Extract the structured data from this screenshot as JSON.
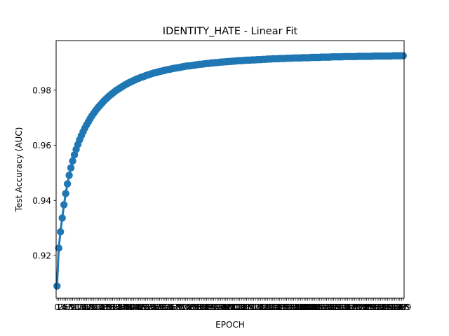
{
  "chart_data": {
    "type": "line",
    "title": "IDENTITY_HATE - Linear Fit",
    "xlabel": "EPOCH",
    "ylabel": "Test Accuracy (AUC)",
    "xlim": [
      -0.5,
      199.5
    ],
    "ylim": [
      0.9045,
      0.998
    ],
    "y_ticks": [
      0.92,
      0.94,
      0.96,
      0.98
    ],
    "y_tick_labels": [
      "0.92",
      "0.94",
      "0.96",
      "0.98"
    ],
    "x_ticks": [
      0,
      1,
      2,
      3,
      4,
      5,
      6,
      7,
      8,
      9,
      10,
      11,
      12,
      13,
      14,
      15,
      16,
      17,
      18,
      19,
      20,
      21,
      22,
      23,
      24,
      25,
      26,
      27,
      28,
      29,
      30,
      31,
      32,
      33,
      34,
      35,
      36,
      37,
      38,
      39,
      40,
      41,
      42,
      43,
      44,
      45,
      46,
      47,
      48,
      49,
      50,
      51,
      52,
      53,
      54,
      55,
      56,
      57,
      58,
      59,
      60,
      61,
      62,
      63,
      64,
      65,
      66,
      67,
      68,
      69,
      70,
      71,
      72,
      73,
      74,
      75,
      76,
      77,
      78,
      79,
      80,
      81,
      82,
      83,
      84,
      85,
      86,
      87,
      88,
      89,
      90,
      91,
      92,
      93,
      94,
      95,
      96,
      97,
      98,
      99,
      100,
      101,
      102,
      103,
      104,
      105,
      106,
      107,
      108,
      109,
      110,
      111,
      112,
      113,
      114,
      115,
      116,
      117,
      118,
      119,
      120,
      121,
      122,
      123,
      124,
      125,
      126,
      127,
      128,
      129,
      130,
      131,
      132,
      133,
      134,
      135,
      136,
      137,
      138,
      139,
      140,
      141,
      142,
      143,
      144,
      145,
      146,
      147,
      148,
      149,
      150,
      151,
      152,
      153,
      154,
      155,
      156,
      157,
      158,
      159,
      160,
      161,
      162,
      163,
      164,
      165,
      166,
      167,
      168,
      169,
      170,
      171,
      172,
      173,
      174,
      175,
      176,
      177,
      178,
      179,
      180,
      181,
      182,
      183,
      184,
      185,
      186,
      187,
      188,
      189,
      190,
      191,
      192,
      193,
      194,
      195,
      196,
      197,
      198,
      199
    ],
    "x_tick_labels": [
      "0",
      "1",
      "2",
      "3",
      "4",
      "5",
      "6",
      "7",
      "8",
      "9",
      "10",
      "11",
      "12",
      "13",
      "14",
      "15",
      "16",
      "17",
      "18",
      "19",
      "20",
      "21",
      "22",
      "23",
      "24",
      "25",
      "26",
      "27",
      "28",
      "29",
      "30",
      "31",
      "32",
      "33",
      "34",
      "35",
      "36",
      "37",
      "38",
      "39",
      "40",
      "41",
      "42",
      "43",
      "44",
      "45",
      "46",
      "47",
      "48",
      "49",
      "50",
      "51",
      "52",
      "53",
      "54",
      "55",
      "56",
      "57",
      "58",
      "59",
      "60",
      "61",
      "62",
      "63",
      "64",
      "65",
      "66",
      "67",
      "68",
      "69",
      "70",
      "71",
      "72",
      "73",
      "74",
      "75",
      "76",
      "77",
      "78",
      "79",
      "80",
      "81",
      "82",
      "83",
      "84",
      "85",
      "86",
      "87",
      "88",
      "89",
      "90",
      "91",
      "92",
      "93",
      "94",
      "95",
      "96",
      "97",
      "98",
      "99",
      "100",
      "101",
      "102",
      "103",
      "104",
      "105",
      "106",
      "107",
      "108",
      "109",
      "110",
      "111",
      "112",
      "113",
      "114",
      "115",
      "116",
      "117",
      "118",
      "119",
      "120",
      "121",
      "122",
      "123",
      "124",
      "125",
      "126",
      "127",
      "128",
      "129",
      "130",
      "131",
      "132",
      "133",
      "134",
      "135",
      "136",
      "137",
      "138",
      "139",
      "140",
      "141",
      "142",
      "143",
      "144",
      "145",
      "146",
      "147",
      "148",
      "149",
      "150",
      "151",
      "152",
      "153",
      "154",
      "155",
      "156",
      "157",
      "158",
      "159",
      "160",
      "161",
      "162",
      "163",
      "164",
      "165",
      "166",
      "167",
      "168",
      "169",
      "170",
      "171",
      "172",
      "173",
      "174",
      "175",
      "176",
      "177",
      "178",
      "179",
      "180",
      "181",
      "182",
      "183",
      "184",
      "185",
      "186",
      "187",
      "188",
      "189",
      "190",
      "191",
      "192",
      "193",
      "194",
      "195",
      "196",
      "197",
      "198",
      "199"
    ],
    "grid": false,
    "series": [
      {
        "color": "#1f77b4",
        "x": [
          0,
          1,
          2,
          3,
          4,
          5,
          6,
          7,
          8,
          9,
          10,
          11,
          12,
          13,
          14,
          15,
          16,
          17,
          18,
          19,
          20,
          21,
          22,
          23,
          24,
          25,
          26,
          27,
          28,
          29,
          30,
          31,
          32,
          33,
          34,
          35,
          36,
          37,
          38,
          39,
          40,
          41,
          42,
          43,
          44,
          45,
          46,
          47,
          48,
          49,
          50,
          51,
          52,
          53,
          54,
          55,
          56,
          57,
          58,
          59,
          60,
          61,
          62,
          63,
          64,
          65,
          66,
          67,
          68,
          69,
          70,
          71,
          72,
          73,
          74,
          75,
          76,
          77,
          78,
          79,
          80,
          81,
          82,
          83,
          84,
          85,
          86,
          87,
          88,
          89,
          90,
          91,
          92,
          93,
          94,
          95,
          96,
          97,
          98,
          99,
          100,
          101,
          102,
          103,
          104,
          105,
          106,
          107,
          108,
          109,
          110,
          111,
          112,
          113,
          114,
          115,
          116,
          117,
          118,
          119,
          120,
          121,
          122,
          123,
          124,
          125,
          126,
          127,
          128,
          129,
          130,
          131,
          132,
          133,
          134,
          135,
          136,
          137,
          138,
          139,
          140,
          141,
          142,
          143,
          144,
          145,
          146,
          147,
          148,
          149,
          150,
          151,
          152,
          153,
          154,
          155,
          156,
          157,
          158,
          159,
          160,
          161,
          162,
          163,
          164,
          165,
          166,
          167,
          168,
          169,
          170,
          171,
          172,
          173,
          174,
          175,
          176,
          177,
          178,
          179,
          180,
          181,
          182,
          183,
          184,
          185,
          186,
          187,
          188,
          189,
          190,
          191,
          192,
          193,
          194,
          195,
          196,
          197,
          198,
          199
        ],
        "y": [
          0.9089,
          0.9227,
          0.9286,
          0.9336,
          0.9384,
          0.9425,
          0.946,
          0.9491,
          0.9518,
          0.9543,
          0.9565,
          0.9585,
          0.9603,
          0.962,
          0.9635,
          0.9649,
          0.9662,
          0.9674,
          0.9685,
          0.9696,
          0.9706,
          0.9715,
          0.9724,
          0.9732,
          0.974,
          0.9747,
          0.9754,
          0.9761,
          0.9767,
          0.9773,
          0.9779,
          0.9784,
          0.9789,
          0.9794,
          0.9799,
          0.9803,
          0.9807,
          0.9811,
          0.9815,
          0.9819,
          0.9822,
          0.9826,
          0.9829,
          0.9832,
          0.9835,
          0.9838,
          0.9841,
          0.9843,
          0.9846,
          0.9848,
          0.985,
          0.9853,
          0.9855,
          0.9857,
          0.9859,
          0.9861,
          0.9863,
          0.9864,
          0.9866,
          0.9868,
          0.9869,
          0.9871,
          0.9872,
          0.9874,
          0.9875,
          0.9876,
          0.9878,
          0.9879,
          0.988,
          0.9881,
          0.9882,
          0.9883,
          0.9885,
          0.9886,
          0.9887,
          0.9888,
          0.9888,
          0.9889,
          0.989,
          0.9891,
          0.9892,
          0.9893,
          0.9894,
          0.9894,
          0.9895,
          0.9896,
          0.9897,
          0.9897,
          0.9898,
          0.9899,
          0.9899,
          0.99,
          0.99,
          0.9901,
          0.9902,
          0.9902,
          0.9903,
          0.9903,
          0.9904,
          0.9904,
          0.9905,
          0.9905,
          0.9906,
          0.9906,
          0.9907,
          0.9907,
          0.9907,
          0.9908,
          0.9908,
          0.9909,
          0.9909,
          0.9909,
          0.991,
          0.991,
          0.991,
          0.9911,
          0.9911,
          0.9911,
          0.9912,
          0.9912,
          0.9912,
          0.9913,
          0.9913,
          0.9913,
          0.9914,
          0.9914,
          0.9914,
          0.9914,
          0.9915,
          0.9915,
          0.9915,
          0.9915,
          0.9916,
          0.9916,
          0.9916,
          0.9916,
          0.9917,
          0.9917,
          0.9917,
          0.9917,
          0.9917,
          0.9918,
          0.9918,
          0.9918,
          0.9918,
          0.9918,
          0.9919,
          0.9919,
          0.9919,
          0.9919,
          0.9919,
          0.9919,
          0.992,
          0.992,
          0.992,
          0.992,
          0.992,
          0.992,
          0.9921,
          0.9921,
          0.9921,
          0.9921,
          0.9921,
          0.9921,
          0.9921,
          0.9922,
          0.9922,
          0.9922,
          0.9922,
          0.9922,
          0.9922,
          0.9922,
          0.9922,
          0.9923,
          0.9923,
          0.9923,
          0.9923,
          0.9923,
          0.9923,
          0.9923,
          0.9923,
          0.9923,
          0.9924,
          0.9924,
          0.9924,
          0.9924,
          0.9924,
          0.9924,
          0.9924,
          0.9924,
          0.9924,
          0.9924,
          0.9924,
          0.9925,
          0.9925,
          0.9925,
          0.9925,
          0.9925,
          0.9925,
          0.9925
        ]
      }
    ]
  }
}
